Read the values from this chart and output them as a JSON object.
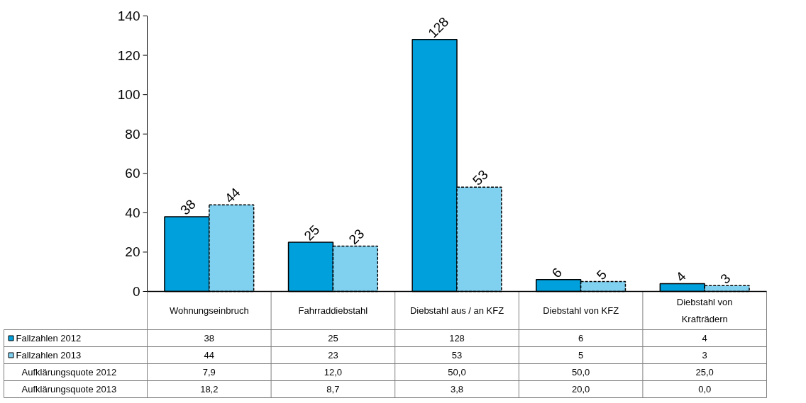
{
  "chart_data": {
    "type": "bar",
    "categories": [
      "Wohnungseinbruch",
      "Fahrraddiebstahl",
      "Diebstahl aus / an KFZ",
      "Diebstahl von KFZ",
      "Diebstahl von Krafträdern"
    ],
    "series": [
      {
        "name": "Fallzahlen 2012",
        "color": "#00a0dc",
        "values": [
          38,
          25,
          128,
          6,
          4
        ],
        "value_labels": [
          "38",
          "25",
          "128",
          "6",
          "4"
        ]
      },
      {
        "name": "Fallzahlen 2013",
        "color": "#80d0f0",
        "line_style": "dashed",
        "values": [
          44,
          23,
          53,
          5,
          3
        ],
        "value_labels": [
          "44",
          "23",
          "53",
          "5",
          "3"
        ]
      }
    ],
    "annotations": [
      "Aufklärungsquote 2012",
      "7,9",
      "12,0",
      "50,0",
      "50,0",
      "25,0",
      "Aufklärungsquote 2013",
      "18,2",
      "8,7",
      "3,8",
      "20,0",
      "0,0"
    ],
    "ylim": [
      0,
      140
    ],
    "yticks": [
      0,
      20,
      40,
      60,
      80,
      100,
      120,
      140
    ],
    "data_labels": true,
    "legend": "bottom left",
    "grid": false
  }
}
